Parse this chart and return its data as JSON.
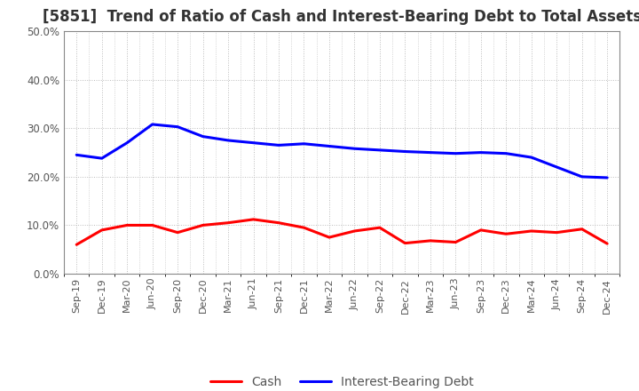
{
  "title": "[5851]  Trend of Ratio of Cash and Interest-Bearing Debt to Total Assets",
  "x_labels": [
    "Sep-19",
    "Dec-19",
    "Mar-20",
    "Jun-20",
    "Sep-20",
    "Dec-20",
    "Mar-21",
    "Jun-21",
    "Sep-21",
    "Dec-21",
    "Mar-22",
    "Jun-22",
    "Sep-22",
    "Dec-22",
    "Mar-23",
    "Jun-23",
    "Sep-23",
    "Dec-23",
    "Mar-24",
    "Jun-24",
    "Sep-24",
    "Dec-24"
  ],
  "cash": [
    0.06,
    0.09,
    0.1,
    0.1,
    0.085,
    0.1,
    0.105,
    0.112,
    0.105,
    0.095,
    0.075,
    0.088,
    0.095,
    0.063,
    0.068,
    0.065,
    0.09,
    0.082,
    0.088,
    0.085,
    0.092,
    0.062
  ],
  "interest_debt": [
    0.245,
    0.238,
    0.27,
    0.308,
    0.303,
    0.283,
    0.275,
    0.27,
    0.265,
    0.268,
    0.263,
    0.258,
    0.255,
    0.252,
    0.25,
    0.248,
    0.25,
    0.248,
    0.24,
    0.22,
    0.2,
    0.198
  ],
  "cash_color": "#ff0000",
  "debt_color": "#0000ff",
  "ylim": [
    0.0,
    0.5
  ],
  "yticks": [
    0.0,
    0.1,
    0.2,
    0.3,
    0.4,
    0.5
  ],
  "background_color": "#ffffff",
  "grid_color": "#bbbbbb",
  "title_fontsize": 12,
  "line_width": 2.2,
  "legend_fontsize": 10
}
